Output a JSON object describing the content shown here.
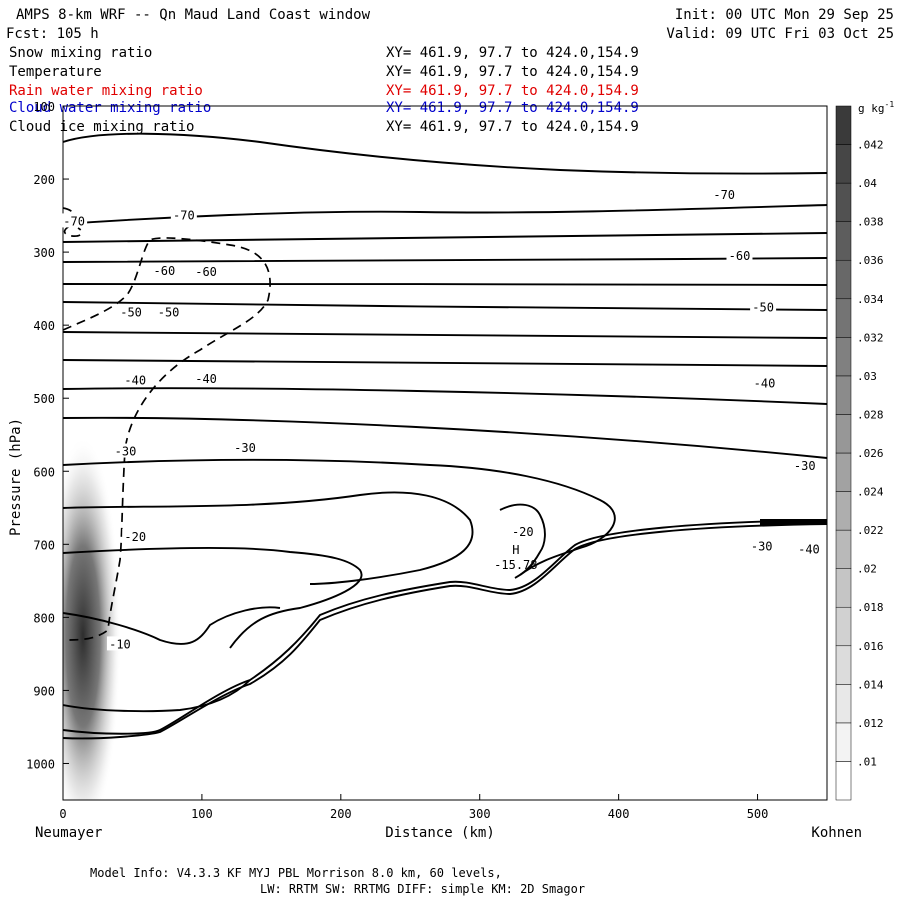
{
  "header": {
    "title": "AMPS 8-km WRF -- Qn Maud Land Coast window",
    "init": "Init: 00 UTC Mon 29 Sep 25",
    "fcst": "Fcst:  105 h",
    "valid": "Valid: 09 UTC Fri 03 Oct 25"
  },
  "fields": [
    {
      "name": "Snow mixing ratio",
      "xy": "XY= 461.9, 97.7 to 424.0,154.9",
      "color": "#000000"
    },
    {
      "name": "Temperature",
      "xy": "XY= 461.9, 97.7 to 424.0,154.9",
      "color": "#000000"
    },
    {
      "name": "Rain water mixing ratio",
      "xy": "XY= 461.9, 97.7 to 424.0,154.9",
      "color": "#e00000"
    },
    {
      "name": "Cloud water mixing ratio",
      "xy": "XY= 461.9, 97.7 to 424.0,154.9",
      "color": "#0000cc"
    },
    {
      "name": "Cloud ice mixing ratio",
      "xy": "XY= 461.9, 97.7 to 424.0,154.9",
      "color": "#000000"
    }
  ],
  "footer": {
    "line1": "Model Info: V4.3.3   KF      MYJ PBL  Morrison              8.0 km,  60 levels,",
    "line2": "LW: RRTM SW: RRTMG   DIFF: simple KM: 2D Smagor"
  },
  "chart_data": {
    "type": "cross-section",
    "xlabel": "Distance (km)",
    "ylabel": "Pressure (hPa)",
    "x_left_label": "Neumayer",
    "x_right_label": "Kohnen",
    "xlim": [
      0,
      550
    ],
    "ylim": [
      1050,
      100
    ],
    "xticks": [
      0,
      100,
      200,
      300,
      400,
      500
    ],
    "yticks": [
      100,
      200,
      300,
      400,
      500,
      600,
      700,
      800,
      900,
      1000
    ],
    "colorbar": {
      "unit": "g kg",
      "unit_exp": "-1",
      "levels": [
        0.01,
        0.012,
        0.014,
        0.016,
        0.018,
        0.02,
        0.022,
        0.024,
        0.026,
        0.028,
        0.03,
        0.032,
        0.034,
        0.036,
        0.038,
        0.04,
        0.042
      ],
      "labels": [
        ".01",
        ".012",
        ".014",
        ".016",
        ".018",
        ".02",
        ".022",
        ".024",
        ".026",
        ".028",
        ".03",
        ".032",
        ".034",
        ".036",
        ".038",
        ".04",
        ".042"
      ]
    },
    "temperature_labels": [
      {
        "text": "-70",
        "x": 8,
        "p": 258
      },
      {
        "text": "-70",
        "x": 87,
        "p": 250
      },
      {
        "text": "-70",
        "x": 476,
        "p": 222
      },
      {
        "text": "-60",
        "x": 73,
        "p": 326
      },
      {
        "text": "-60",
        "x": 103,
        "p": 327
      },
      {
        "text": "-60",
        "x": 487,
        "p": 305
      },
      {
        "text": "-50",
        "x": 49,
        "p": 383
      },
      {
        "text": "-50",
        "x": 76,
        "p": 383
      },
      {
        "text": "-50",
        "x": 504,
        "p": 376
      },
      {
        "text": "-40",
        "x": 52,
        "p": 476
      },
      {
        "text": "-40",
        "x": 103,
        "p": 474
      },
      {
        "text": "-40",
        "x": 505,
        "p": 480
      },
      {
        "text": "-30",
        "x": 45,
        "p": 573
      },
      {
        "text": "-30",
        "x": 131,
        "p": 568
      },
      {
        "text": "-30",
        "x": 534,
        "p": 593
      },
      {
        "text": "-30",
        "x": 503,
        "p": 703
      },
      {
        "text": "-40",
        "x": 537,
        "p": 707
      },
      {
        "text": "-20",
        "x": 52,
        "p": 690
      },
      {
        "text": "-20",
        "x": 331,
        "p": 683
      },
      {
        "text": "-10",
        "x": 41,
        "p": 837
      }
    ],
    "extrema": [
      {
        "symbol": "H",
        "value": "-15.78",
        "x": 326,
        "p": 727
      }
    ]
  }
}
